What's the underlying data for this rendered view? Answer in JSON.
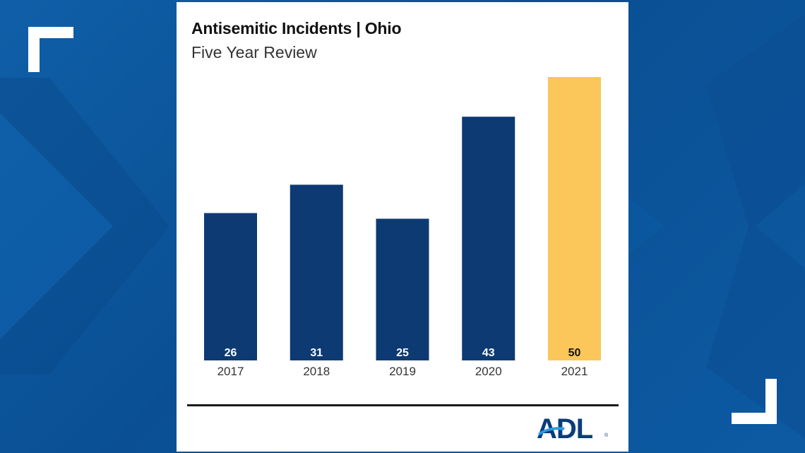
{
  "chart_data": {
    "type": "bar",
    "title": "Antisemitic Incidents | Ohio",
    "subtitle": "Five Year Review",
    "categories": [
      "2017",
      "2018",
      "2019",
      "2020",
      "2021"
    ],
    "values": [
      26,
      31,
      25,
      43,
      50
    ],
    "value_labels": [
      "26",
      "31",
      "25",
      "43",
      "50"
    ],
    "colors": [
      "#0d3a73",
      "#0d3a73",
      "#0d3a73",
      "#0d3a73",
      "#fbc65a"
    ],
    "value_label_colors": [
      "#ffffff",
      "#ffffff",
      "#ffffff",
      "#ffffff",
      "#111111"
    ],
    "ylim": [
      0,
      50
    ],
    "grid": false,
    "legend": "none"
  },
  "logo": {
    "text": "ADL",
    "mark": "®"
  },
  "colors": {
    "card": "#ffffff",
    "background": "#0b529a",
    "corner_marks": "#ffffff"
  }
}
